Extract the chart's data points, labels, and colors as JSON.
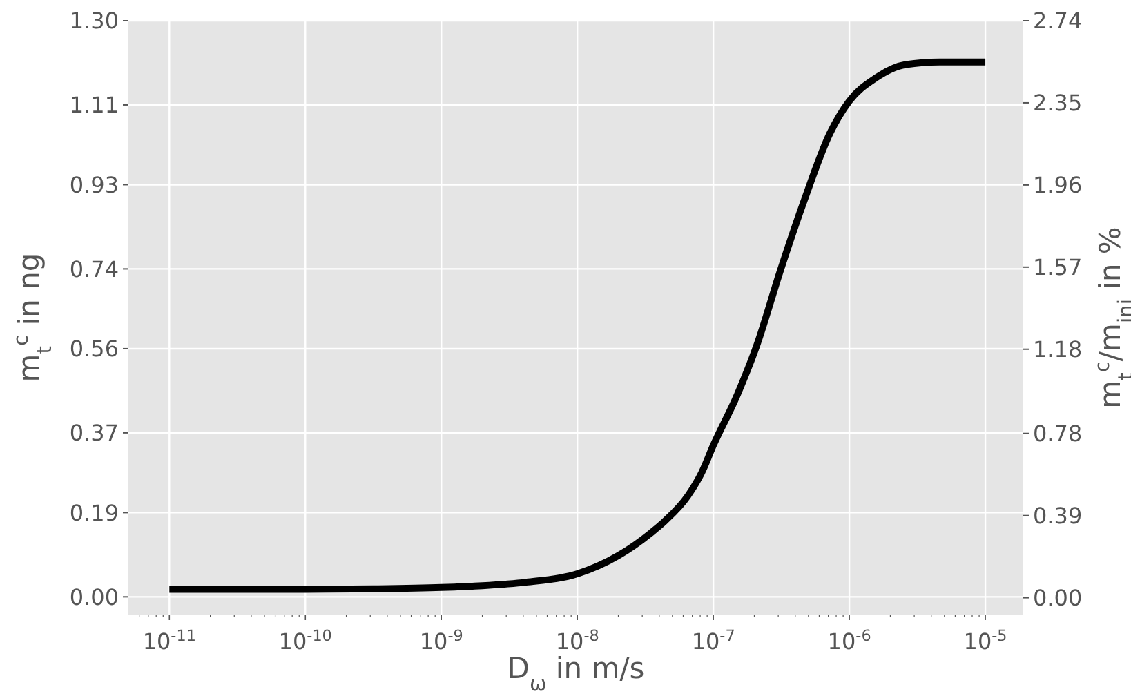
{
  "chart_data": {
    "type": "line",
    "xlabel": "D$_{ω}$ in m/s",
    "ylabel": "m$_{t}$$^{c}$ in ng",
    "y2label": "m$_{t}$$^{c}$/m$_{ini}$ in %",
    "log": "x",
    "grid": true,
    "marker": "none",
    "line_style": "solid",
    "xlim": [
      5e-12,
      1.9e-05
    ],
    "ylim": [
      -0.04,
      1.3
    ],
    "y2lim": [
      -0.08,
      2.74
    ],
    "xticks": [
      {
        "value": 1e-11,
        "label": "10$^{-11}$"
      },
      {
        "value": 1e-10,
        "label": "10$^{-10}$"
      },
      {
        "value": 1e-09,
        "label": "10$^{-9}$"
      },
      {
        "value": 1e-08,
        "label": "10$^{-8}$"
      },
      {
        "value": 1e-07,
        "label": "10$^{-7}$"
      },
      {
        "value": 1e-06,
        "label": "10$^{-6}$"
      },
      {
        "value": 1e-05,
        "label": "10$^{-5}$"
      },
      {
        "value": 6e-12,
        "label": null
      },
      {
        "value": 7e-12,
        "label": null
      },
      {
        "value": 8e-12,
        "label": null
      },
      {
        "value": 9e-12,
        "label": null
      },
      {
        "value": 2e-11,
        "label": null
      },
      {
        "value": 3e-11,
        "label": null
      },
      {
        "value": 4e-11,
        "label": null
      },
      {
        "value": 5e-11,
        "label": null
      },
      {
        "value": 6e-11,
        "label": null
      },
      {
        "value": 7e-11,
        "label": null
      },
      {
        "value": 8e-11,
        "label": null
      },
      {
        "value": 9e-11,
        "label": null
      },
      {
        "value": 2e-10,
        "label": null
      },
      {
        "value": 3e-10,
        "label": null
      },
      {
        "value": 4e-10,
        "label": null
      },
      {
        "value": 5e-10,
        "label": null
      },
      {
        "value": 6e-10,
        "label": null
      },
      {
        "value": 7e-10,
        "label": null
      },
      {
        "value": 8e-10,
        "label": null
      },
      {
        "value": 9e-10,
        "label": null
      },
      {
        "value": 2e-09,
        "label": null
      },
      {
        "value": 3e-09,
        "label": null
      },
      {
        "value": 4e-09,
        "label": null
      },
      {
        "value": 5e-09,
        "label": null
      },
      {
        "value": 6e-09,
        "label": null
      },
      {
        "value": 7e-09,
        "label": null
      },
      {
        "value": 8e-09,
        "label": null
      },
      {
        "value": 9e-09,
        "label": null
      },
      {
        "value": 2e-08,
        "label": null
      },
      {
        "value": 3e-08,
        "label": null
      },
      {
        "value": 4e-08,
        "label": null
      },
      {
        "value": 5e-08,
        "label": null
      },
      {
        "value": 6e-08,
        "label": null
      },
      {
        "value": 7e-08,
        "label": null
      },
      {
        "value": 8e-08,
        "label": null
      },
      {
        "value": 9e-08,
        "label": null
      },
      {
        "value": 2e-07,
        "label": null
      },
      {
        "value": 3e-07,
        "label": null
      },
      {
        "value": 4e-07,
        "label": null
      },
      {
        "value": 5e-07,
        "label": null
      },
      {
        "value": 6e-07,
        "label": null
      },
      {
        "value": 7e-07,
        "label": null
      },
      {
        "value": 8e-07,
        "label": null
      },
      {
        "value": 9e-07,
        "label": null
      },
      {
        "value": 2e-06,
        "label": null
      },
      {
        "value": 3e-06,
        "label": null
      },
      {
        "value": 4e-06,
        "label": null
      },
      {
        "value": 5e-06,
        "label": null
      },
      {
        "value": 6e-06,
        "label": null
      },
      {
        "value": 7e-06,
        "label": null
      },
      {
        "value": 8e-06,
        "label": null
      },
      {
        "value": 9e-06,
        "label": null
      }
    ],
    "yticks": [
      {
        "value": 0,
        "label": "0.00"
      },
      {
        "value": 0.19,
        "label": "0.19"
      },
      {
        "value": 0.37,
        "label": "0.37"
      },
      {
        "value": 0.56,
        "label": "0.56"
      },
      {
        "value": 0.74,
        "label": "0.74"
      },
      {
        "value": 0.93,
        "label": "0.93"
      },
      {
        "value": 1.11,
        "label": "1.11"
      },
      {
        "value": 1.3,
        "label": "1.30"
      }
    ],
    "y2ticks": [
      {
        "value": 0,
        "label": "0.00"
      },
      {
        "value": 0.39,
        "label": "0.39"
      },
      {
        "value": 0.78,
        "label": "0.78"
      },
      {
        "value": 1.18,
        "label": "1.18"
      },
      {
        "value": 1.57,
        "label": "1.57"
      },
      {
        "value": 1.96,
        "label": "1.96"
      },
      {
        "value": 2.35,
        "label": "2.35"
      },
      {
        "value": 2.74,
        "label": "2.74"
      }
    ],
    "x": [
      1e-11,
      1e-10,
      3.16e-10,
      1e-09,
      2e-09,
      4.2e-09,
      1e-08,
      2e-08,
      3.5e-08,
      4.4e-08,
      6.5e-08,
      8.2e-08,
      1e-07,
      1.5e-07,
      2.1e-07,
      3.1e-07,
      4.6e-07,
      7.2e-07,
      1e-06,
      1.55e-06,
      2.6e-06,
      4.6e-06,
      1e-05
    ],
    "series": [
      {
        "color": "#000000",
        "values": [
          0.017,
          0.017,
          0.018,
          0.021,
          0.025,
          0.033,
          0.052,
          0.093,
          0.145,
          0.171,
          0.228,
          0.28,
          0.342,
          0.456,
          0.57,
          0.735,
          0.89,
          1.046,
          1.119,
          1.17,
          1.201,
          1.207,
          1.207
        ]
      }
    ]
  }
}
